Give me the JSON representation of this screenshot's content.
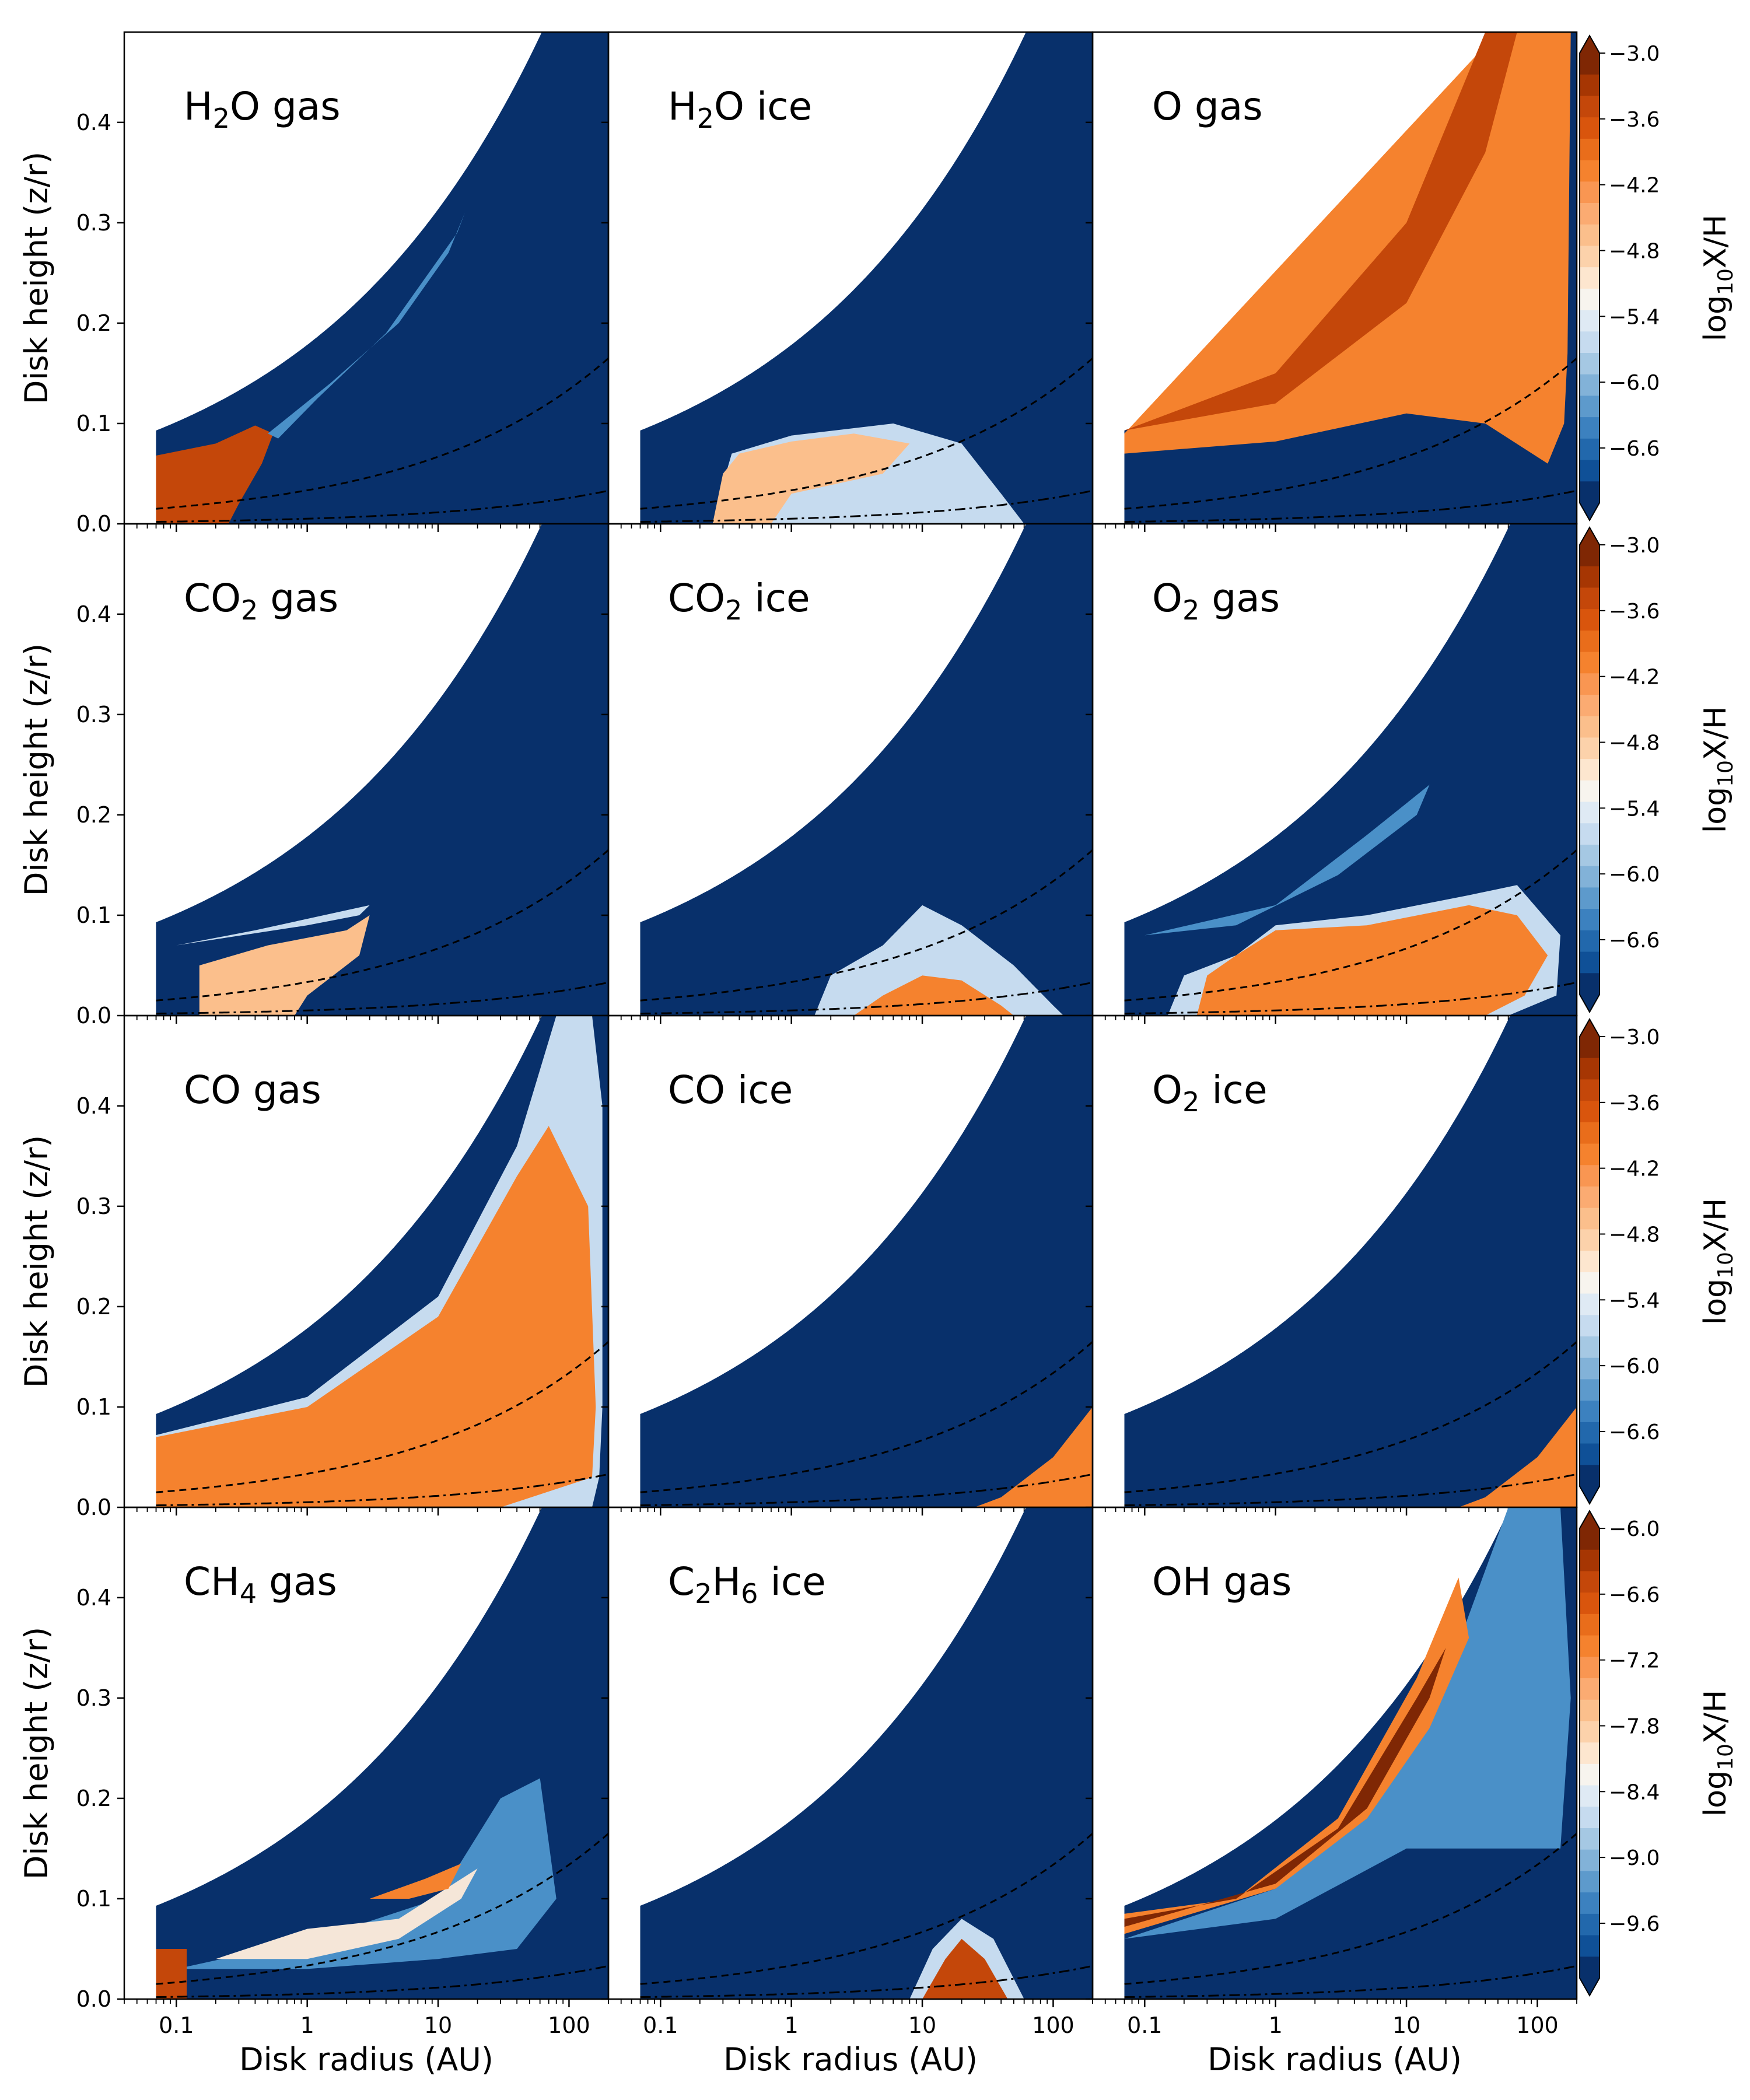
{
  "figure": {
    "xlabel": "Disk radius (AU)",
    "ylabel": "Disk height (z/r)",
    "colorbar_label": "log10X/H",
    "colors": {
      "background_low": "#08306b",
      "deep_orange": "#c4470a",
      "orange": "#f5822e",
      "light_orange": "#fbbf8c",
      "pale": "#f5e6d8",
      "light_blue": "#c6dbef",
      "mid_blue": "#4a90c8",
      "dark_brown": "#7f2704",
      "curve": "#000000"
    }
  },
  "chart_data": {
    "type": "heatmap",
    "x_scale": "log",
    "xlim": [
      0.04,
      200
    ],
    "ylim": [
      0.0,
      0.49
    ],
    "x_ticks": [
      0.1,
      1,
      10,
      100
    ],
    "x_tick_labels": [
      "0.1",
      "1",
      "10",
      "100"
    ],
    "y_ticks": [
      0.0,
      0.1,
      0.2,
      0.3,
      0.4
    ],
    "y_tick_labels": [
      "0.0",
      "0.1",
      "0.2",
      "0.3",
      "0.4"
    ],
    "disk_surface": {
      "r_in": 0.07,
      "zr_at_r_in": 0.093,
      "r_max": 200
    },
    "dashed_curve": {
      "style": "dashed",
      "zr_at_r_in": 0.015,
      "zr_at_r_max": 0.165
    },
    "dashdot_curve": {
      "style": "dash-dot",
      "zr_at_r_in": 0.002,
      "zr_at_r_max": 0.033
    },
    "panels": [
      {
        "label": "H2O gas",
        "text_main": "H",
        "sub": "2",
        "text_rest": "O gas",
        "region": "Inner midplane (r < 0.6 AU, z/r < 0.1) with thin upper streak to ~15 AU"
      },
      {
        "label": "H2O ice",
        "text_main": "H",
        "sub": "2",
        "text_rest": "O ice",
        "region": "Midplane band from ~0.3 to ~30 AU, z/r < 0.1"
      },
      {
        "label": "O gas",
        "text_main": "O gas",
        "sub": "",
        "text_rest": "",
        "region": "Entire upper atmosphere above z/r ~ 0.07"
      },
      {
        "label": "CO2 gas",
        "text_main": "CO",
        "sub": "2",
        "text_rest": " gas",
        "region": "0.1 to 3 AU, z/r < 0.11"
      },
      {
        "label": "CO2 ice",
        "text_main": "CO",
        "sub": "2",
        "text_rest": " ice",
        "region": "1 to 100 AU, z/r < 0.1"
      },
      {
        "label": "O2 gas",
        "text_main": "O",
        "sub": "2",
        "text_rest": " gas",
        "region": "0.1 to 150 AU, z/r < 0.15"
      },
      {
        "label": "CO gas",
        "text_main": "CO gas",
        "sub": "",
        "text_rest": "",
        "region": "Whole warm molecular layer to outer disk"
      },
      {
        "label": "CO ice",
        "text_main": "CO ice",
        "sub": "",
        "text_rest": "",
        "region": "Outer midplane r > 30 AU"
      },
      {
        "label": "O2 ice",
        "text_main": "O",
        "sub": "2",
        "text_rest": " ice",
        "region": "Outer midplane r > 30 AU"
      },
      {
        "label": "CH4 gas",
        "text_main": "CH",
        "sub": "4",
        "text_rest": " gas",
        "region": "Inner disk patches, z/r < 0.2"
      },
      {
        "label": "C2H6 ice",
        "text_main": "C",
        "sub": "2",
        "text_rest": "H",
        "sub2": "6",
        "text_rest2": " ice",
        "region": "10 to 60 AU midplane"
      },
      {
        "label": "OH gas",
        "text_main": "OH gas",
        "sub": "",
        "text_rest": "",
        "region": "Thin layer along disk surface"
      }
    ],
    "colorbars": [
      {
        "row": 0,
        "vmin": -7.1,
        "vmax": -3.0,
        "tick_labels": [
          "-3.0",
          "-3.6",
          "-4.2",
          "-4.8",
          "-5.4",
          "-6.0",
          "-6.6"
        ],
        "tick_values": [
          -3.0,
          -3.6,
          -4.2,
          -4.8,
          -5.4,
          -6.0,
          -6.6
        ]
      },
      {
        "row": 1,
        "vmin": -7.1,
        "vmax": -3.0,
        "tick_labels": [
          "-3.0",
          "-3.6",
          "-4.2",
          "-4.8",
          "-5.4",
          "-6.0",
          "-6.6"
        ],
        "tick_values": [
          -3.0,
          -3.6,
          -4.2,
          -4.8,
          -5.4,
          -6.0,
          -6.6
        ]
      },
      {
        "row": 2,
        "vmin": -7.1,
        "vmax": -3.0,
        "tick_labels": [
          "-3.0",
          "-3.6",
          "-4.2",
          "-4.8",
          "-5.4",
          "-6.0",
          "-6.6"
        ],
        "tick_values": [
          -3.0,
          -3.6,
          -4.2,
          -4.8,
          -5.4,
          -6.0,
          -6.6
        ]
      },
      {
        "row": 3,
        "vmin": -10.1,
        "vmax": -6.0,
        "tick_labels": [
          "-6.0",
          "-6.6",
          "-7.2",
          "-7.8",
          "-8.4",
          "-9.0",
          "-9.6"
        ],
        "tick_values": [
          -6.0,
          -6.6,
          -7.2,
          -7.8,
          -8.4,
          -9.0,
          -9.6
        ]
      }
    ]
  }
}
